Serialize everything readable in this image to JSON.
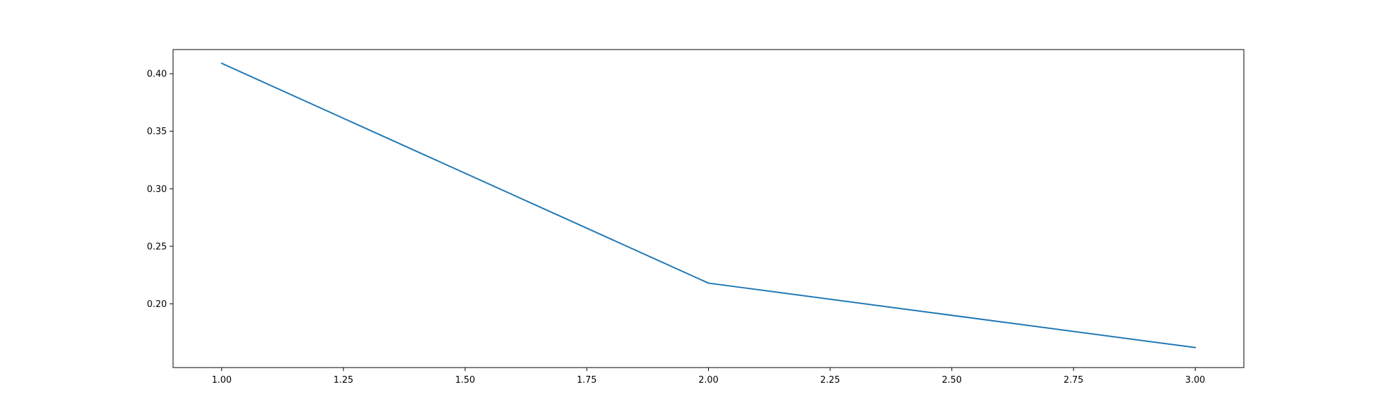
{
  "chart_data": {
    "type": "line",
    "title": "",
    "xlabel": "",
    "ylabel": "",
    "xlim": [
      0.9,
      3.1
    ],
    "ylim": [
      0.1446,
      0.421
    ],
    "x_ticks": [
      1.0,
      1.25,
      1.5,
      1.75,
      2.0,
      2.25,
      2.5,
      2.75,
      3.0
    ],
    "x_tick_labels": [
      "1.00",
      "1.25",
      "1.50",
      "1.75",
      "2.00",
      "2.25",
      "2.50",
      "2.75",
      "3.00"
    ],
    "y_ticks": [
      0.2,
      0.25,
      0.3,
      0.35,
      0.4
    ],
    "y_tick_labels": [
      "0.20",
      "0.25",
      "0.30",
      "0.35",
      "0.40"
    ],
    "grid": false,
    "legend": false,
    "series": [
      {
        "x": [
          1,
          2,
          3
        ],
        "y": [
          0.409,
          0.218,
          0.162
        ],
        "color": "#1f77b4"
      }
    ]
  }
}
